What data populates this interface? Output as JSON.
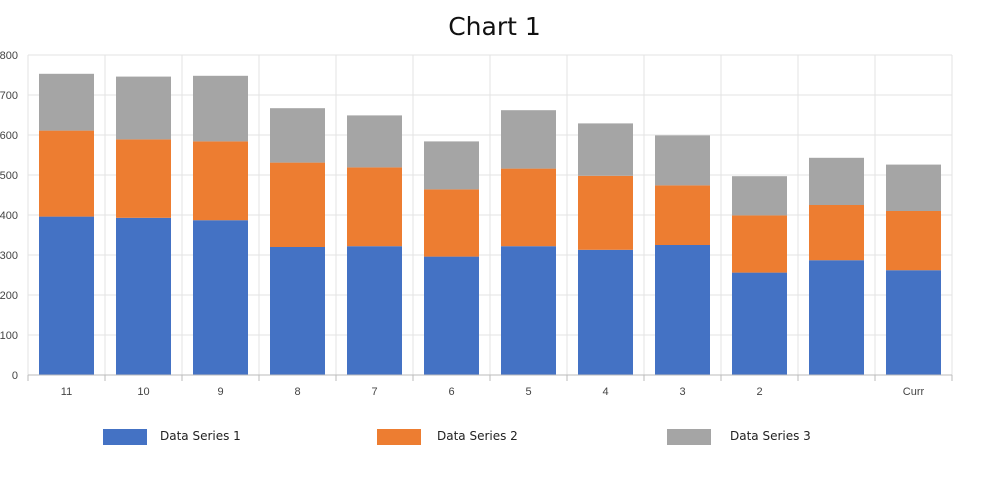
{
  "chart_data": {
    "type": "bar",
    "stacked": true,
    "title": "Chart 1",
    "xlabel": "",
    "ylabel": "",
    "ylim": [
      0,
      800
    ],
    "yticks": [
      0,
      100,
      200,
      300,
      400,
      500,
      600,
      700,
      800
    ],
    "grid": true,
    "legend_position": "bottom",
    "categories": [
      "11",
      "10",
      "9",
      "8",
      "7",
      "6",
      "5",
      "4",
      "3",
      "2",
      "",
      "Curr"
    ],
    "series": [
      {
        "name": "Data Series 1",
        "color": "#4472C4",
        "values": [
          396,
          393,
          387,
          320,
          322,
          296,
          322,
          313,
          325,
          256,
          287,
          262
        ]
      },
      {
        "name": "Data Series 2",
        "color": "#ED7D31",
        "values": [
          215,
          196,
          197,
          211,
          197,
          168,
          194,
          185,
          149,
          143,
          138,
          148
        ]
      },
      {
        "name": "Data Series 3",
        "color": "#A5A5A5",
        "values": [
          142,
          157,
          164,
          136,
          130,
          120,
          146,
          131,
          125,
          98,
          118,
          116
        ]
      }
    ]
  }
}
